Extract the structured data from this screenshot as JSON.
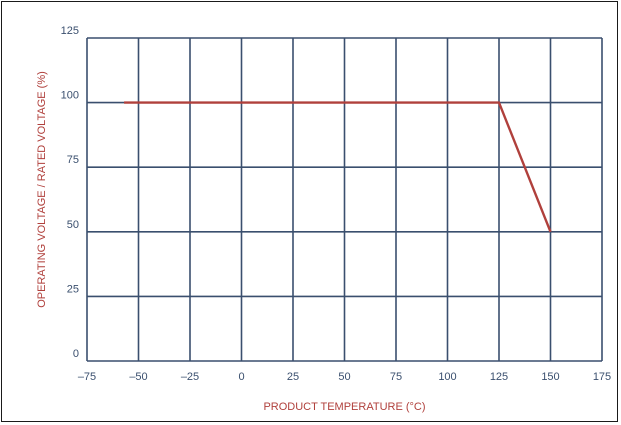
{
  "chart_data": {
    "type": "line",
    "title": "",
    "xlabel": "PRODUCT TEMPERATURE (°C)",
    "ylabel": "OPERATING VOLTAGE / RATED VOLTAGE (%)",
    "xlim": [
      -75,
      175
    ],
    "ylim": [
      0,
      125
    ],
    "x_ticks": [
      -75,
      -50,
      -25,
      0,
      25,
      50,
      75,
      100,
      125,
      150,
      175
    ],
    "y_ticks": [
      0,
      25,
      50,
      75,
      100,
      125
    ],
    "x_tick_labels": [
      "–75",
      "–50",
      "–25",
      "0",
      "25",
      "50",
      "75",
      "100",
      "125",
      "150",
      "175"
    ],
    "y_tick_labels": [
      "0",
      "25",
      "50",
      "75",
      "100",
      "125"
    ],
    "grid": true,
    "legend": "none",
    "series": [
      {
        "x": [
          -57,
          125,
          150
        ],
        "y": [
          100,
          100,
          50
        ]
      }
    ],
    "colors": {
      "series": "#b0403c",
      "grid": "#3a4f6e",
      "axis_title": "#b0403c",
      "tick_label": "#3a4f6e"
    }
  }
}
